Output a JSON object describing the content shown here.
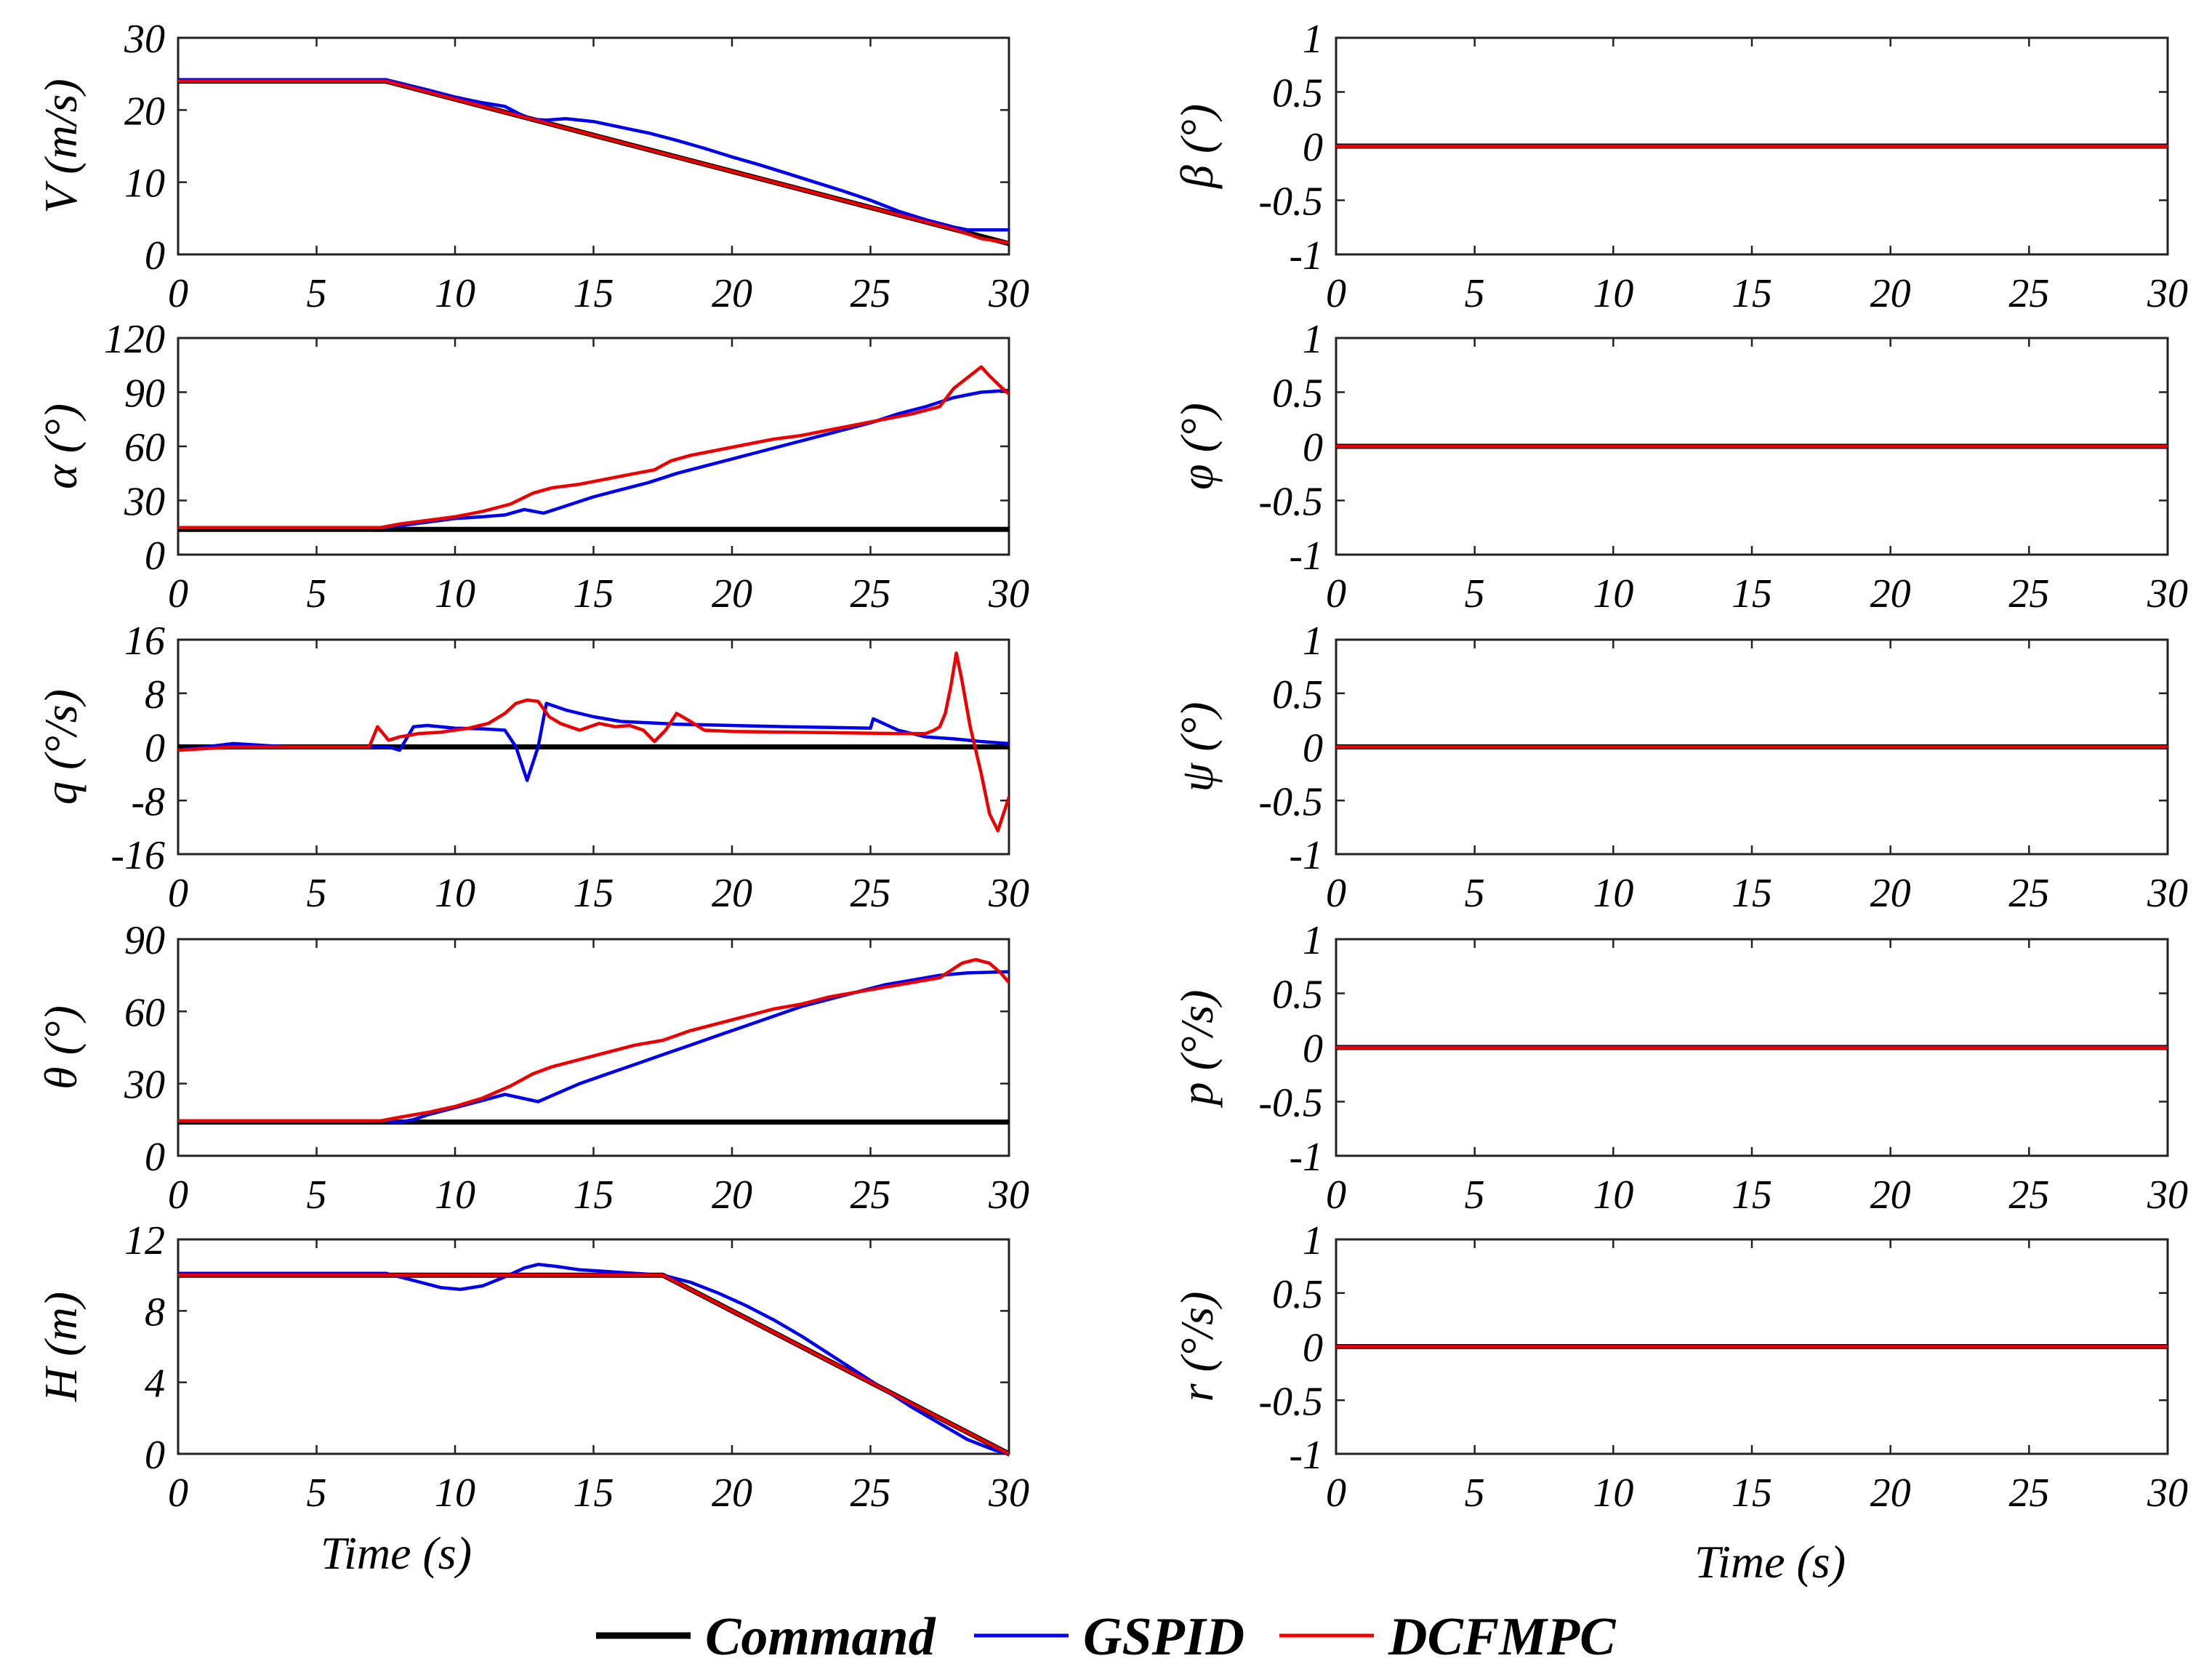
{
  "legend": [
    {
      "name": "Command",
      "color": "#000000"
    },
    {
      "name": "GSPID",
      "color": "#0000ee"
    },
    {
      "name": "DCFMPC",
      "color": "#ee0000"
    }
  ],
  "xlabel": "Time (s)",
  "chart_data": [
    {
      "id": "V",
      "type": "line",
      "ylabel": "V (m/s)",
      "xlim": [
        0,
        30
      ],
      "ylim": [
        0,
        30
      ],
      "yticks": [
        "0",
        "10",
        "20",
        "30"
      ],
      "yticks_v": [
        0,
        10,
        20,
        30
      ],
      "xticks": [
        "0",
        "5",
        "10",
        "15",
        "20",
        "25",
        "30"
      ],
      "series": [
        {
          "name": "Command",
          "x": [
            0,
            7.5,
            30
          ],
          "y": [
            24,
            24,
            1.5
          ]
        },
        {
          "name": "GSPID",
          "x": [
            0,
            7.5,
            9,
            10,
            11,
            11.8,
            12.3,
            12.8,
            13.3,
            14,
            15,
            16,
            17,
            18,
            19,
            20,
            21,
            22,
            23,
            24,
            25,
            26,
            27,
            28,
            28.5,
            29,
            30
          ],
          "y": [
            24.2,
            24.2,
            22.8,
            21.8,
            21,
            20.5,
            19.5,
            18.7,
            18.6,
            18.8,
            18.4,
            17.6,
            16.8,
            15.8,
            14.7,
            13.5,
            12.4,
            11.2,
            10,
            8.8,
            7.5,
            6,
            4.8,
            3.8,
            3.4,
            3.4,
            3.4
          ]
        },
        {
          "name": "DCFMPC",
          "x": [
            0,
            7.5,
            8,
            9,
            10,
            11,
            12,
            13,
            14,
            15,
            16,
            17,
            18,
            19,
            20,
            21,
            22,
            23,
            24,
            25,
            26,
            27,
            28,
            29,
            30
          ],
          "y": [
            24,
            24,
            23.5,
            22.5,
            21.5,
            20.5,
            19.5,
            18.5,
            17.5,
            16.5,
            15.5,
            14.5,
            13.5,
            12.5,
            11.5,
            10.5,
            9.5,
            8.5,
            7.5,
            6.5,
            5.5,
            4.5,
            3.5,
            2.2,
            1.6
          ]
        }
      ]
    },
    {
      "id": "beta",
      "type": "line",
      "ylabel": "β (°)",
      "xlim": [
        0,
        30
      ],
      "ylim": [
        -1,
        1
      ],
      "yticks": [
        "-1",
        "-0.5",
        "0",
        "0.5",
        "1"
      ],
      "yticks_v": [
        -1,
        -0.5,
        0,
        0.5,
        1
      ],
      "xticks": [
        "0",
        "5",
        "10",
        "15",
        "20",
        "25",
        "30"
      ],
      "series": [
        {
          "name": "Command",
          "x": [
            0,
            30
          ],
          "y": [
            0,
            0
          ]
        },
        {
          "name": "GSPID",
          "x": [
            0,
            30
          ],
          "y": [
            0,
            0
          ]
        },
        {
          "name": "DCFMPC",
          "x": [
            0,
            30
          ],
          "y": [
            0,
            0
          ]
        }
      ]
    },
    {
      "id": "alpha",
      "type": "line",
      "ylabel": "α (°)",
      "xlim": [
        0,
        30
      ],
      "ylim": [
        0,
        120
      ],
      "yticks": [
        "0",
        "30",
        "60",
        "90",
        "120"
      ],
      "yticks_v": [
        0,
        30,
        60,
        90,
        120
      ],
      "xticks": [
        "0",
        "5",
        "10",
        "15",
        "20",
        "25",
        "30"
      ],
      "series": [
        {
          "name": "Command",
          "x": [
            0,
            30
          ],
          "y": [
            14,
            14
          ]
        },
        {
          "name": "GSPID",
          "x": [
            0,
            7.3,
            8,
            9,
            10,
            11,
            11.8,
            12.5,
            13.2,
            14,
            15,
            16,
            17,
            18,
            19,
            20,
            21,
            22,
            23,
            24,
            25,
            26,
            27,
            28,
            29,
            30
          ],
          "y": [
            15,
            15,
            16,
            18,
            20,
            21,
            22,
            25,
            23,
            27,
            32,
            36,
            40,
            45,
            49,
            53,
            57,
            61,
            65,
            69,
            73,
            78,
            82,
            87,
            90,
            91
          ]
        },
        {
          "name": "DCFMPC",
          "x": [
            0,
            7.3,
            8,
            9,
            10,
            11,
            12,
            12.8,
            13.5,
            14.5,
            15.5,
            16.5,
            17.2,
            17.8,
            18.5,
            19.5,
            20.5,
            21.5,
            22.5,
            23.5,
            24.5,
            25.5,
            26.5,
            27.5,
            28,
            28.5,
            29,
            29.3,
            29.7,
            30
          ],
          "y": [
            15,
            15,
            17,
            19,
            21,
            24,
            28,
            34,
            37,
            39,
            42,
            45,
            47,
            52,
            55,
            58,
            61,
            64,
            66,
            69,
            72,
            75,
            78,
            82,
            92,
            98,
            104,
            99,
            93,
            89
          ]
        }
      ]
    },
    {
      "id": "phi",
      "type": "line",
      "ylabel": "φ (°)",
      "xlim": [
        0,
        30
      ],
      "ylim": [
        -1,
        1
      ],
      "yticks": [
        "-1",
        "-0.5",
        "0",
        "0.5",
        "1"
      ],
      "yticks_v": [
        -1,
        -0.5,
        0,
        0.5,
        1
      ],
      "xticks": [
        "0",
        "5",
        "10",
        "15",
        "20",
        "25",
        "30"
      ],
      "series": [
        {
          "name": "Command",
          "x": [
            0,
            30
          ],
          "y": [
            0,
            0
          ]
        },
        {
          "name": "GSPID",
          "x": [
            0,
            30
          ],
          "y": [
            0,
            0
          ]
        },
        {
          "name": "DCFMPC",
          "x": [
            0,
            30
          ],
          "y": [
            0,
            0
          ]
        }
      ]
    },
    {
      "id": "q",
      "type": "line",
      "ylabel": "q (°/s)",
      "xlim": [
        0,
        30
      ],
      "ylim": [
        -16,
        16
      ],
      "yticks": [
        "-16",
        "-8",
        "0",
        "8",
        "16"
      ],
      "yticks_v": [
        -16,
        -8,
        0,
        8,
        16
      ],
      "xticks": [
        "0",
        "5",
        "10",
        "15",
        "20",
        "25",
        "30"
      ],
      "series": [
        {
          "name": "Command",
          "x": [
            0,
            30
          ],
          "y": [
            0,
            0
          ]
        },
        {
          "name": "GSPID",
          "x": [
            0,
            2,
            4,
            6,
            7,
            7.6,
            8,
            8.5,
            9,
            10,
            11,
            11.8,
            12.2,
            12.6,
            13,
            13.3,
            14,
            15,
            16,
            18,
            20,
            22,
            25,
            25.1,
            26,
            27,
            28,
            29,
            30
          ],
          "y": [
            -0.5,
            0.5,
            0,
            0,
            0,
            0,
            -0.5,
            3,
            3.2,
            2.8,
            2.7,
            2.5,
            0,
            -5,
            0,
            6.5,
            5.5,
            4.5,
            3.8,
            3.4,
            3.2,
            3.0,
            2.8,
            4.2,
            2.5,
            1.5,
            1.2,
            0.8,
            0.5
          ]
        },
        {
          "name": "DCFMPC",
          "x": [
            0,
            2,
            4,
            6,
            6.9,
            7.2,
            7.6,
            8,
            8.7,
            9.5,
            10.5,
            11.2,
            11.8,
            12.2,
            12.6,
            13,
            13.4,
            13.8,
            14.5,
            15.2,
            15.8,
            16.3,
            16.8,
            17.2,
            17.6,
            18,
            18.5,
            19,
            20,
            22,
            24,
            26,
            27,
            27.3,
            27.5,
            27.7,
            27.9,
            28.1,
            28.3,
            28.6,
            29,
            29.3,
            29.6,
            30
          ],
          "y": [
            -0.5,
            0,
            0,
            0,
            0,
            3,
            1,
            1.5,
            2,
            2.2,
            2.8,
            3.5,
            5,
            6.5,
            7,
            6.8,
            4.5,
            3.5,
            2.5,
            3.5,
            3,
            3.2,
            2.5,
            0.8,
            2.5,
            5,
            3.8,
            2.5,
            2.3,
            2.2,
            2.1,
            2.0,
            2.0,
            2.5,
            3.0,
            5.0,
            9.0,
            14.0,
            10.0,
            3.0,
            -4.0,
            -10.0,
            -12.5,
            -7.5
          ]
        }
      ]
    },
    {
      "id": "psi",
      "type": "line",
      "ylabel": "ψ (°)",
      "xlim": [
        0,
        30
      ],
      "ylim": [
        -1,
        1
      ],
      "yticks": [
        "-1",
        "-0.5",
        "0",
        "0.5",
        "1"
      ],
      "yticks_v": [
        -1,
        -0.5,
        0,
        0.5,
        1
      ],
      "xticks": [
        "0",
        "5",
        "10",
        "15",
        "20",
        "25",
        "30"
      ],
      "series": [
        {
          "name": "Command",
          "x": [
            0,
            30
          ],
          "y": [
            0,
            0
          ]
        },
        {
          "name": "GSPID",
          "x": [
            0,
            30
          ],
          "y": [
            0,
            0
          ]
        },
        {
          "name": "DCFMPC",
          "x": [
            0,
            30
          ],
          "y": [
            0,
            0
          ]
        }
      ]
    },
    {
      "id": "theta",
      "type": "line",
      "ylabel": "θ (°)",
      "xlim": [
        0,
        30
      ],
      "ylim": [
        0,
        90
      ],
      "yticks": [
        "0",
        "30",
        "60",
        "90"
      ],
      "yticks_v": [
        0,
        30,
        60,
        90
      ],
      "xticks": [
        "0",
        "5",
        "10",
        "15",
        "20",
        "25",
        "30"
      ],
      "series": [
        {
          "name": "Command",
          "x": [
            0,
            30
          ],
          "y": [
            14,
            14
          ]
        },
        {
          "name": "GSPID",
          "x": [
            0,
            7.5,
            8,
            8.5,
            9,
            10,
            11,
            11.8,
            12.4,
            13,
            13.5,
            14.5,
            15.5,
            16.5,
            17.5,
            18.5,
            19.5,
            20.5,
            21.5,
            22.5,
            23.5,
            24.5,
            25.5,
            26.5,
            27.5,
            28.5,
            30
          ],
          "y": [
            14.5,
            14.5,
            14,
            15,
            17,
            20,
            23,
            25.5,
            24,
            22.5,
            25,
            30,
            34,
            38,
            42,
            46,
            50,
            54,
            58,
            62,
            65,
            68,
            71,
            73,
            75,
            76,
            76.5
          ]
        },
        {
          "name": "DCFMPC",
          "x": [
            0,
            7.3,
            8,
            9,
            10,
            11,
            12,
            12.8,
            13.5,
            14.5,
            15.5,
            16.5,
            17.5,
            18.5,
            19.5,
            20.5,
            21.5,
            22.5,
            23.5,
            24.5,
            25.5,
            26.5,
            27.5,
            28.3,
            28.8,
            29.3,
            29.7,
            30
          ],
          "y": [
            14.5,
            14.5,
            16,
            18,
            20.5,
            24,
            29,
            34,
            37,
            40,
            43,
            46,
            48,
            52,
            55,
            58,
            61,
            63,
            66,
            68,
            70,
            72,
            74,
            80,
            81.5,
            80,
            76,
            72
          ]
        }
      ]
    },
    {
      "id": "p",
      "type": "line",
      "ylabel": "p (°/s)",
      "xlim": [
        0,
        30
      ],
      "ylim": [
        -1,
        1
      ],
      "yticks": [
        "-1",
        "-0.5",
        "0",
        "0.5",
        "1"
      ],
      "yticks_v": [
        -1,
        -0.5,
        0,
        0.5,
        1
      ],
      "xticks": [
        "0",
        "5",
        "10",
        "15",
        "20",
        "25",
        "30"
      ],
      "series": [
        {
          "name": "Command",
          "x": [
            0,
            30
          ],
          "y": [
            0,
            0
          ]
        },
        {
          "name": "GSPID",
          "x": [
            0,
            30
          ],
          "y": [
            0,
            0
          ]
        },
        {
          "name": "DCFMPC",
          "x": [
            0,
            30
          ],
          "y": [
            0,
            0
          ]
        }
      ]
    },
    {
      "id": "H",
      "type": "line",
      "ylabel": "H (m)",
      "xlim": [
        0,
        30
      ],
      "ylim": [
        0,
        12
      ],
      "yticks": [
        "0",
        "4",
        "8",
        "12"
      ],
      "yticks_v": [
        0,
        4,
        8,
        12
      ],
      "xticks": [
        "0",
        "5",
        "10",
        "15",
        "20",
        "25",
        "30"
      ],
      "series": [
        {
          "name": "Command",
          "x": [
            0,
            17.5,
            30
          ],
          "y": [
            10,
            10,
            0
          ]
        },
        {
          "name": "GSPID",
          "x": [
            0,
            7.5,
            8.5,
            9.5,
            10.2,
            11,
            11.8,
            12.5,
            13,
            13.6,
            14.5,
            15.5,
            16.5,
            17.5,
            18.5,
            19.5,
            20.5,
            21.5,
            22.5,
            23.5,
            24.5,
            25.5,
            26.5,
            27.5,
            28.5,
            29.5,
            30
          ],
          "y": [
            10.1,
            10.1,
            9.7,
            9.3,
            9.2,
            9.4,
            9.9,
            10.4,
            10.6,
            10.5,
            10.3,
            10.2,
            10.1,
            10,
            9.6,
            9.0,
            8.3,
            7.5,
            6.6,
            5.6,
            4.6,
            3.6,
            2.6,
            1.7,
            0.8,
            0.2,
            0
          ]
        },
        {
          "name": "DCFMPC",
          "x": [
            0,
            17.5,
            30
          ],
          "y": [
            10,
            10,
            0
          ]
        }
      ]
    },
    {
      "id": "r",
      "type": "line",
      "ylabel": "r (°/s)",
      "xlim": [
        0,
        30
      ],
      "ylim": [
        -1,
        1
      ],
      "yticks": [
        "-1",
        "-0.5",
        "0",
        "0.5",
        "1"
      ],
      "yticks_v": [
        -1,
        -0.5,
        0,
        0.5,
        1
      ],
      "xticks": [
        "0",
        "5",
        "10",
        "15",
        "20",
        "25",
        "30"
      ],
      "series": [
        {
          "name": "Command",
          "x": [
            0,
            30
          ],
          "y": [
            0,
            0
          ]
        },
        {
          "name": "GSPID",
          "x": [
            0,
            30
          ],
          "y": [
            0,
            0
          ]
        },
        {
          "name": "DCFMPC",
          "x": [
            0,
            30
          ],
          "y": [
            0,
            0
          ]
        }
      ]
    }
  ]
}
